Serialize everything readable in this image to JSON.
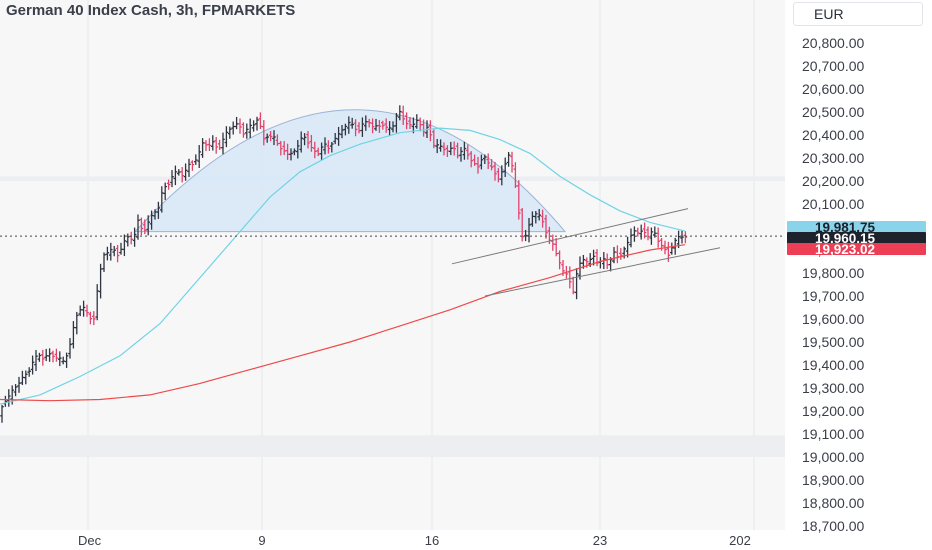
{
  "header": {
    "title": "German 40 Index Cash, 3h, FPMARKETS",
    "currency": "EUR"
  },
  "colors": {
    "bull": "#2e3440",
    "bear": "#e0436b",
    "ma_fast": "#6fd4e4",
    "ma_slow": "#ef4a4a",
    "arc_fill": "#d8e8f7",
    "channel": "#7a7a7a"
  },
  "price_labels": [
    {
      "id": "ma_fast",
      "text": "19,981.75",
      "value": 19981.75,
      "bg": "#89d4ea",
      "fg": "#1b1f2a"
    },
    {
      "id": "last",
      "text": "19,960.15",
      "value": 19960.15,
      "bg": "#1e222d",
      "fg": "#ffffff"
    },
    {
      "id": "ma_slow",
      "text": "19,923.02",
      "value": 19923.02,
      "bg": "#ec3f55",
      "fg": "#ffffff"
    }
  ],
  "chart_data": {
    "type": "candlestick",
    "title": "German 40 Index Cash, 3h, FPMARKETS",
    "x_tick_labels": [
      "Dec",
      "9",
      "16",
      "23",
      "202"
    ],
    "y_tick_labels": [
      "20,800.00",
      "20,700.00",
      "20,600.00",
      "20,500.00",
      "20,400.00",
      "20,300.00",
      "20,200.00",
      "20,100.00",
      "20,000.00",
      "19,900.00",
      "19,800.00",
      "19,700.00",
      "19,600.00",
      "19,500.00",
      "19,400.00",
      "19,300.00",
      "19,200.00",
      "19,100.00",
      "19,000.00",
      "18,900.00",
      "18,800.00",
      "18,700.00"
    ],
    "y_ticks": [
      20800,
      20700,
      20600,
      20500,
      20400,
      20300,
      20200,
      20100,
      20000,
      19900,
      19800,
      19700,
      19600,
      19500,
      19400,
      19300,
      19200,
      19100,
      19000,
      18900,
      18800,
      18700
    ],
    "ylim": [
      18680,
      20890
    ],
    "last_price": 19960.15,
    "series": [
      {
        "name": "Price",
        "kind": "ohlc",
        "path": [
          [
            0,
            19170
          ],
          [
            5,
            19240
          ],
          [
            10,
            19260
          ],
          [
            15,
            19290
          ],
          [
            20,
            19320
          ],
          [
            25,
            19350
          ],
          [
            30,
            19370
          ],
          [
            35,
            19420
          ],
          [
            40,
            19440
          ],
          [
            45,
            19430
          ],
          [
            50,
            19450
          ],
          [
            55,
            19440
          ],
          [
            60,
            19430
          ],
          [
            65,
            19410
          ],
          [
            70,
            19460
          ],
          [
            75,
            19560
          ],
          [
            80,
            19640
          ],
          [
            85,
            19650
          ],
          [
            90,
            19610
          ],
          [
            95,
            19590
          ],
          [
            100,
            19760
          ],
          [
            105,
            19880
          ],
          [
            110,
            19890
          ],
          [
            115,
            19900
          ],
          [
            120,
            19880
          ],
          [
            125,
            19930
          ],
          [
            130,
            19960
          ],
          [
            135,
            19940
          ],
          [
            140,
            20030
          ],
          [
            145,
            19980
          ],
          [
            150,
            20020
          ],
          [
            155,
            20060
          ],
          [
            160,
            20080
          ],
          [
            165,
            20170
          ],
          [
            170,
            20190
          ],
          [
            175,
            20230
          ],
          [
            180,
            20240
          ],
          [
            185,
            20220
          ],
          [
            190,
            20270
          ],
          [
            195,
            20280
          ],
          [
            200,
            20310
          ],
          [
            205,
            20370
          ],
          [
            210,
            20350
          ],
          [
            215,
            20370
          ],
          [
            220,
            20340
          ],
          [
            225,
            20380
          ],
          [
            230,
            20420
          ],
          [
            235,
            20440
          ],
          [
            240,
            20450
          ],
          [
            245,
            20410
          ],
          [
            250,
            20430
          ],
          [
            255,
            20440
          ],
          [
            260,
            20480
          ],
          [
            265,
            20380
          ],
          [
            270,
            20400
          ],
          [
            275,
            20390
          ],
          [
            280,
            20350
          ],
          [
            285,
            20340
          ],
          [
            290,
            20310
          ],
          [
            295,
            20330
          ],
          [
            300,
            20350
          ],
          [
            305,
            20400
          ],
          [
            310,
            20370
          ],
          [
            315,
            20330
          ],
          [
            320,
            20320
          ],
          [
            325,
            20360
          ],
          [
            330,
            20340
          ],
          [
            335,
            20380
          ],
          [
            340,
            20400
          ],
          [
            345,
            20430
          ],
          [
            350,
            20450
          ],
          [
            355,
            20440
          ],
          [
            360,
            20420
          ],
          [
            365,
            20450
          ],
          [
            370,
            20460
          ],
          [
            375,
            20430
          ],
          [
            380,
            20440
          ],
          [
            385,
            20450
          ],
          [
            390,
            20420
          ],
          [
            395,
            20440
          ],
          [
            400,
            20510
          ],
          [
            405,
            20470
          ],
          [
            410,
            20450
          ],
          [
            415,
            20440
          ],
          [
            420,
            20470
          ],
          [
            425,
            20410
          ],
          [
            430,
            20440
          ],
          [
            435,
            20360
          ],
          [
            440,
            20350
          ],
          [
            445,
            20340
          ],
          [
            450,
            20330
          ],
          [
            455,
            20350
          ],
          [
            460,
            20310
          ],
          [
            465,
            20340
          ],
          [
            470,
            20310
          ],
          [
            475,
            20280
          ],
          [
            480,
            20260
          ],
          [
            485,
            20320
          ],
          [
            490,
            20270
          ],
          [
            495,
            20250
          ],
          [
            500,
            20210
          ],
          [
            505,
            20250
          ],
          [
            510,
            20320
          ],
          [
            515,
            20240
          ],
          [
            520,
            20080
          ],
          [
            525,
            19930
          ],
          [
            530,
            20000
          ],
          [
            535,
            20060
          ],
          [
            540,
            20050
          ],
          [
            545,
            20020
          ],
          [
            550,
            19950
          ],
          [
            555,
            19920
          ],
          [
            560,
            19860
          ],
          [
            565,
            19800
          ],
          [
            570,
            19790
          ],
          [
            575,
            19720
          ],
          [
            580,
            19830
          ],
          [
            585,
            19860
          ],
          [
            590,
            19840
          ],
          [
            595,
            19880
          ],
          [
            600,
            19840
          ],
          [
            605,
            19860
          ],
          [
            610,
            19830
          ],
          [
            615,
            19890
          ],
          [
            620,
            19870
          ],
          [
            625,
            19900
          ],
          [
            630,
            19930
          ],
          [
            635,
            19990
          ],
          [
            640,
            19970
          ],
          [
            645,
            19990
          ],
          [
            650,
            19960
          ],
          [
            655,
            19980
          ],
          [
            660,
            19940
          ],
          [
            665,
            19910
          ],
          [
            670,
            19880
          ],
          [
            675,
            19930
          ],
          [
            680,
            19950
          ],
          [
            685,
            19960
          ],
          [
            688,
            19960
          ]
        ]
      },
      {
        "name": "MA fast",
        "kind": "line",
        "points": [
          [
            0,
            19230
          ],
          [
            40,
            19270
          ],
          [
            80,
            19350
          ],
          [
            120,
            19440
          ],
          [
            160,
            19580
          ],
          [
            200,
            19780
          ],
          [
            240,
            19980
          ],
          [
            270,
            20130
          ],
          [
            300,
            20240
          ],
          [
            330,
            20310
          ],
          [
            360,
            20360
          ],
          [
            400,
            20410
          ],
          [
            440,
            20430
          ],
          [
            470,
            20420
          ],
          [
            500,
            20380
          ],
          [
            530,
            20320
          ],
          [
            560,
            20220
          ],
          [
            590,
            20140
          ],
          [
            620,
            20070
          ],
          [
            650,
            20020
          ],
          [
            685,
            19982
          ]
        ]
      },
      {
        "name": "MA slow",
        "kind": "line",
        "points": [
          [
            0,
            19250
          ],
          [
            50,
            19245
          ],
          [
            100,
            19250
          ],
          [
            150,
            19270
          ],
          [
            200,
            19320
          ],
          [
            250,
            19380
          ],
          [
            300,
            19440
          ],
          [
            350,
            19500
          ],
          [
            400,
            19570
          ],
          [
            450,
            19640
          ],
          [
            500,
            19720
          ],
          [
            550,
            19780
          ],
          [
            600,
            19850
          ],
          [
            650,
            19900
          ],
          [
            685,
            19923
          ]
        ]
      }
    ],
    "drawings": [
      {
        "kind": "arc_region",
        "from": [
          135,
          19980
        ],
        "peak": [
          355,
          20510
        ],
        "to": [
          565,
          19980
        ]
      },
      {
        "kind": "trendline",
        "from": [
          452,
          19840
        ],
        "to": [
          688,
          20080
        ]
      },
      {
        "kind": "trendline",
        "from": [
          485,
          19700
        ],
        "to": [
          720,
          19910
        ]
      },
      {
        "kind": "band",
        "y_from": 20200,
        "y_to": 20220
      },
      {
        "kind": "band",
        "y_from": 19000,
        "y_to": 19095
      }
    ],
    "grid": true
  }
}
